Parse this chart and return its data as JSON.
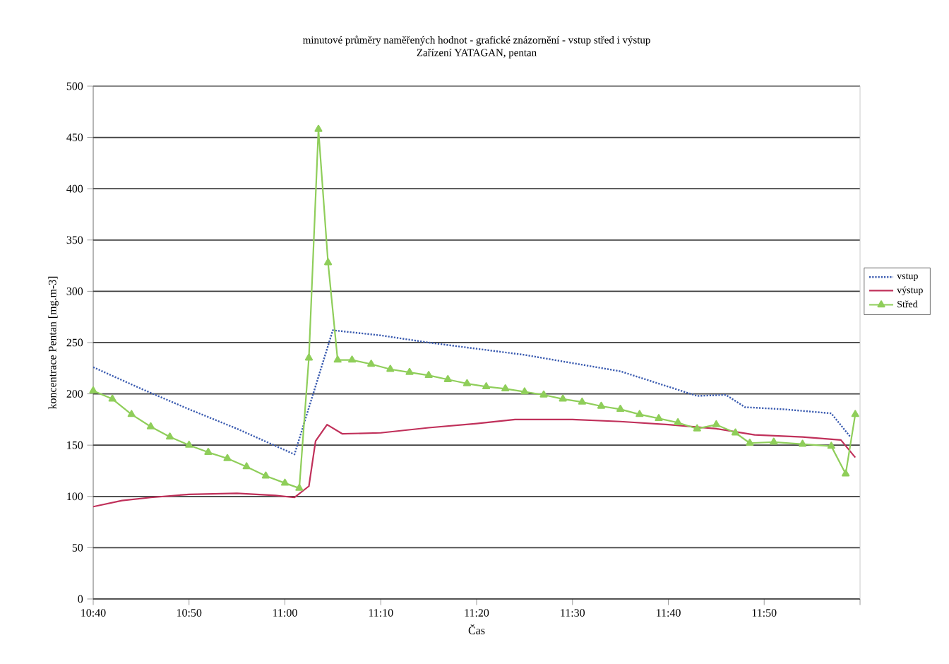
{
  "chart_data": {
    "type": "line",
    "title": "minutové průměry naměřených hodnot - grafické znázornění - vstup střed i výstup",
    "subtitle": "Zařízení YATAGAN, pentan",
    "xlabel": "Čas",
    "ylabel": "koncentrace Pentan [mg.m-3]",
    "xlim": [
      10.6667,
      12.0
    ],
    "ylim": [
      0,
      500
    ],
    "xticks": [
      {
        "value": 10.6667,
        "label": "10:40"
      },
      {
        "value": 10.8333,
        "label": "10:50"
      },
      {
        "value": 11.0,
        "label": "11:00"
      },
      {
        "value": 11.1667,
        "label": "11:10"
      },
      {
        "value": 11.3333,
        "label": "11:20"
      },
      {
        "value": 11.5,
        "label": "11:30"
      },
      {
        "value": 11.6667,
        "label": "11:40"
      },
      {
        "value": 11.8333,
        "label": "11:50"
      },
      {
        "value": 12.0,
        "label": null
      }
    ],
    "yticks": [
      0,
      50,
      100,
      150,
      200,
      250,
      300,
      350,
      400,
      450,
      500
    ],
    "grid": "y",
    "legend": "right",
    "series": [
      {
        "name": "vstup",
        "color": "#3a5bb0",
        "line_style": "dotted",
        "marker": "none",
        "x": [
          10.6667,
          10.75,
          10.8333,
          10.9167,
          11.0167,
          11.0833,
          11.1667,
          11.25,
          11.3333,
          11.4167,
          11.5,
          11.5833,
          11.6667,
          11.7167,
          11.7667,
          11.8,
          11.8667,
          11.95,
          11.9833
        ],
        "values": [
          226,
          205,
          185,
          166,
          141,
          262,
          257,
          250,
          244,
          238,
          230,
          222,
          207,
          198,
          199,
          187,
          185,
          181,
          158
        ]
      },
      {
        "name": "výstup",
        "color": "#c0305a",
        "line_style": "solid",
        "marker": "none",
        "x": [
          10.6667,
          10.7167,
          10.7667,
          10.8333,
          10.9167,
          10.9833,
          11.0167,
          11.0417,
          11.0533,
          11.0733,
          11.1,
          11.1667,
          11.25,
          11.3333,
          11.4,
          11.5,
          11.5833,
          11.6667,
          11.75,
          11.8167,
          11.9,
          11.9667,
          11.9917
        ],
        "values": [
          90,
          96,
          99,
          102,
          103,
          101,
          99,
          110,
          154,
          170,
          161,
          162,
          167,
          171,
          175,
          175,
          173,
          170,
          166,
          160,
          158,
          155,
          138
        ]
      },
      {
        "name": "Střed",
        "color": "#8fce5a",
        "line_style": "solid",
        "marker": "triangle",
        "x": [
          10.6667,
          10.7,
          10.7333,
          10.7667,
          10.8,
          10.8333,
          10.8667,
          10.9,
          10.9333,
          10.9667,
          11.0,
          11.025,
          11.0417,
          11.0583,
          11.075,
          11.0917,
          11.1167,
          11.15,
          11.1833,
          11.2167,
          11.25,
          11.2833,
          11.3167,
          11.35,
          11.3833,
          11.4167,
          11.45,
          11.4833,
          11.5167,
          11.55,
          11.5833,
          11.6167,
          11.65,
          11.6833,
          11.7167,
          11.75,
          11.7833,
          11.8083,
          11.85,
          11.9,
          11.95,
          11.975,
          11.9917
        ],
        "values": [
          203,
          195,
          180,
          168,
          158,
          150,
          143,
          137,
          129,
          120,
          113,
          108,
          235,
          458,
          328,
          233,
          233,
          229,
          224,
          221,
          218,
          214,
          210,
          207,
          205,
          202,
          199,
          195,
          192,
          188,
          185,
          180,
          176,
          172,
          166,
          170,
          162,
          152,
          153,
          151,
          149,
          122,
          180
        ]
      }
    ]
  }
}
